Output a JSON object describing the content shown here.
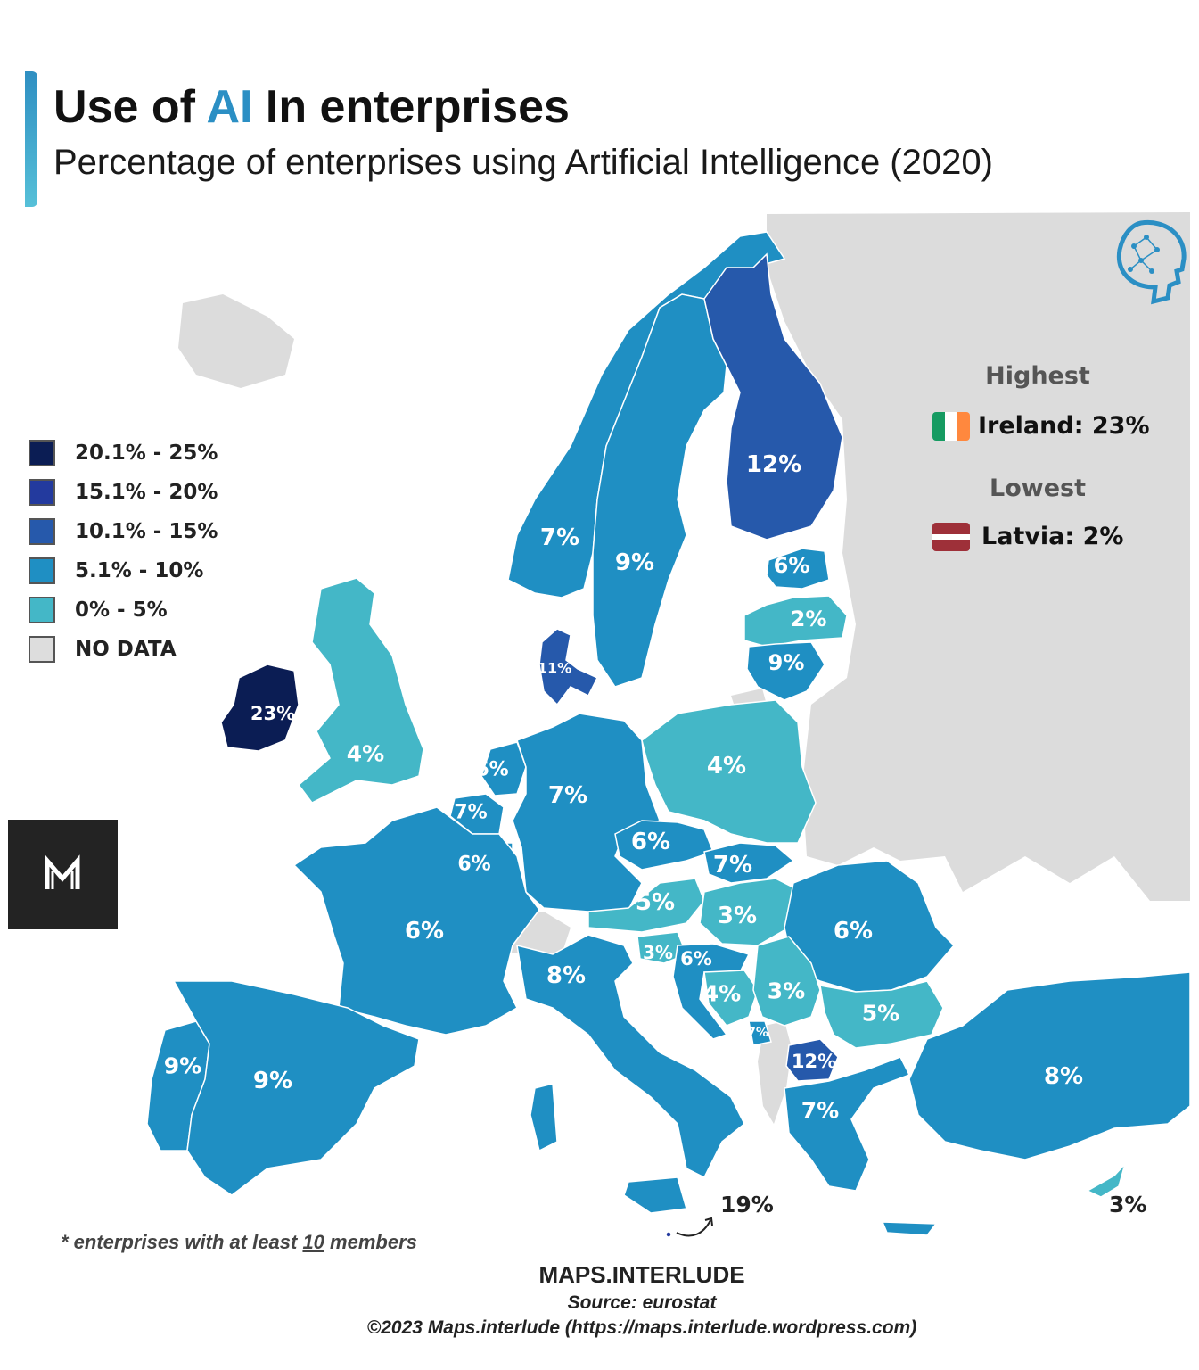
{
  "title": {
    "pre": "Use of ",
    "accent": "AI",
    "post": " In enterprises"
  },
  "subtitle": "Percentage of enterprises using Artificial Intelligence (2020)",
  "legend": [
    {
      "label": "20.1% - 25%",
      "color": "#0b1d54"
    },
    {
      "label": "15.1% - 20%",
      "color": "#233a9e"
    },
    {
      "label": "10.1% - 15%",
      "color": "#2659ab"
    },
    {
      "label": "5.1% - 10%",
      "color": "#1f8fc3"
    },
    {
      "label": "0% - 5%",
      "color": "#44b7c7"
    },
    {
      "label": "NO DATA",
      "color": "#dddddd"
    }
  ],
  "highest": {
    "heading": "Highest",
    "value": "Ireland: 23%",
    "flag": [
      "#169b62",
      "#ffffff",
      "#ff883e"
    ]
  },
  "lowest": {
    "heading": "Lowest",
    "value": "Latvia: 2%",
    "flag": [
      "#9e3039",
      "#ffffff",
      "#9e3039"
    ]
  },
  "countries": [
    {
      "name": "Ireland",
      "value": "23%",
      "color": "#0b1d54"
    },
    {
      "name": "United Kingdom",
      "value": "4%",
      "color": "#44b7c7"
    },
    {
      "name": "Norway",
      "value": "7%",
      "color": "#1f8fc3"
    },
    {
      "name": "Sweden",
      "value": "9%",
      "color": "#1f8fc3"
    },
    {
      "name": "Finland",
      "value": "12%",
      "color": "#2659ab"
    },
    {
      "name": "Estonia",
      "value": "6%",
      "color": "#1f8fc3"
    },
    {
      "name": "Latvia",
      "value": "2%",
      "color": "#44b7c7"
    },
    {
      "name": "Lithuania",
      "value": "9%",
      "color": "#1f8fc3"
    },
    {
      "name": "Denmark",
      "value": "11%",
      "color": "#2659ab"
    },
    {
      "name": "Netherlands",
      "value": "6%",
      "color": "#1f8fc3"
    },
    {
      "name": "Belgium",
      "value": "7%",
      "color": "#1f8fc3"
    },
    {
      "name": "Luxembourg",
      "value": "6%",
      "color": "#1f8fc3"
    },
    {
      "name": "Germany",
      "value": "7%",
      "color": "#1f8fc3"
    },
    {
      "name": "Poland",
      "value": "4%",
      "color": "#44b7c7"
    },
    {
      "name": "Czechia",
      "value": "6%",
      "color": "#1f8fc3"
    },
    {
      "name": "Slovakia",
      "value": "7%",
      "color": "#1f8fc3"
    },
    {
      "name": "Austria",
      "value": "5%",
      "color": "#44b7c7"
    },
    {
      "name": "Hungary",
      "value": "3%",
      "color": "#44b7c7"
    },
    {
      "name": "Romania",
      "value": "6%",
      "color": "#1f8fc3"
    },
    {
      "name": "France",
      "value": "6%",
      "color": "#1f8fc3"
    },
    {
      "name": "Italy",
      "value": "8%",
      "color": "#1f8fc3"
    },
    {
      "name": "Slovenia",
      "value": "3%",
      "color": "#44b7c7"
    },
    {
      "name": "Croatia",
      "value": "6%",
      "color": "#1f8fc3"
    },
    {
      "name": "Bosnia and Herzegovina",
      "value": "4%",
      "color": "#44b7c7"
    },
    {
      "name": "Serbia",
      "value": "3%",
      "color": "#44b7c7"
    },
    {
      "name": "Montenegro",
      "value": "7%",
      "color": "#1f8fc3"
    },
    {
      "name": "North Macedonia",
      "value": "12%",
      "color": "#2659ab"
    },
    {
      "name": "Bulgaria",
      "value": "5%",
      "color": "#44b7c7"
    },
    {
      "name": "Greece",
      "value": "7%",
      "color": "#1f8fc3"
    },
    {
      "name": "Turkey",
      "value": "8%",
      "color": "#1f8fc3"
    },
    {
      "name": "Portugal",
      "value": "9%",
      "color": "#1f8fc3"
    },
    {
      "name": "Spain",
      "value": "9%",
      "color": "#1f8fc3"
    },
    {
      "name": "Malta",
      "value": "19%",
      "color": "#233a9e"
    },
    {
      "name": "Cyprus",
      "value": "3%",
      "color": "#44b7c7"
    }
  ],
  "no_data_color": "#dcdcdc",
  "logo_icon": "ai-head-icon",
  "brand_icon": "maps-interlude-m-icon",
  "footnote": {
    "pre": "* enterprises with at least ",
    "num": "10",
    "post": " members"
  },
  "brand": "MAPS.INTERLUDE",
  "source": "Source: eurostat",
  "copyright": "©2023 Maps.interlude (https://maps.interlude.wordpress.com)"
}
